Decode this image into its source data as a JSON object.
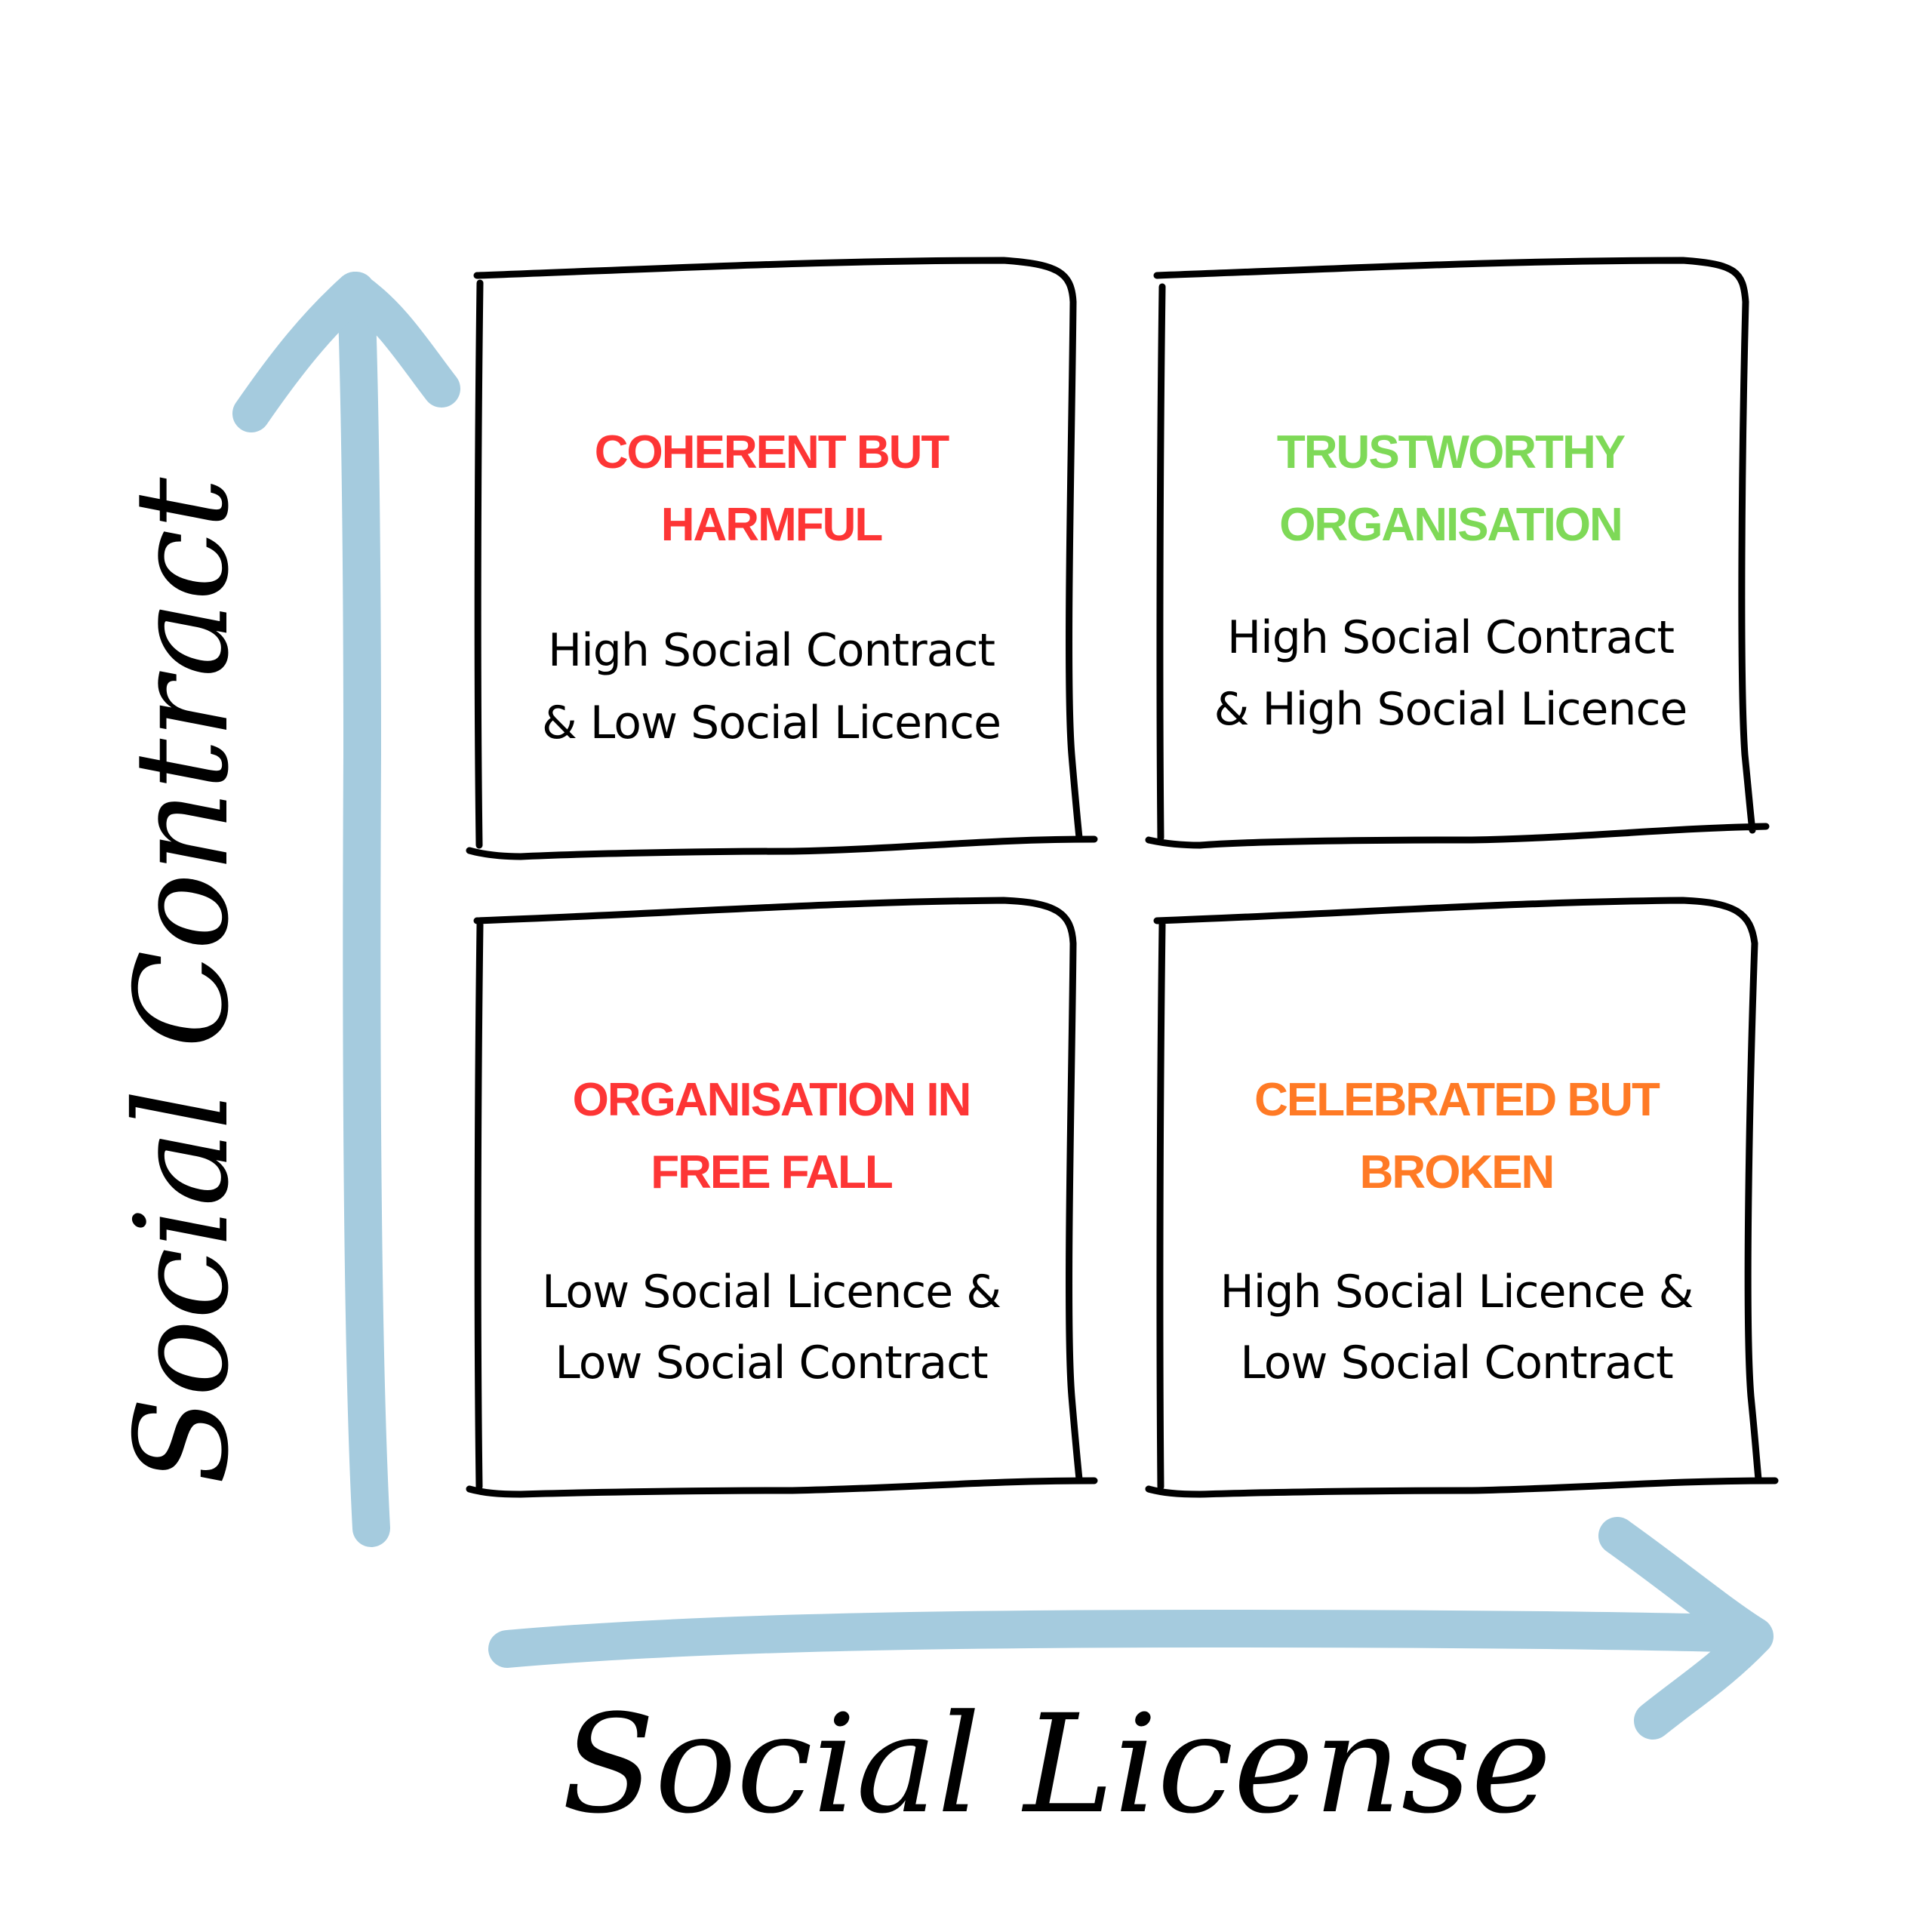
{
  "colors": {
    "arrow": "#a5cbde",
    "harmful": "#fd3535",
    "trustworthy": "#7ed957",
    "broken": "#ff7a25",
    "outline": "#000000"
  },
  "axes": {
    "y_label": "Social Contract",
    "x_label": "Social License"
  },
  "quadrants": [
    {
      "title_line1": "COHERENT BUT",
      "title_line2": "HARMFUL",
      "desc_line1": "High Social Contract",
      "desc_line2": "& Low Social Licence"
    },
    {
      "title_line1": "TRUSTWORTHY",
      "title_line2": "ORGANISATION",
      "desc_line1": "High Social Contract",
      "desc_line2": "& High Social Licence"
    },
    {
      "title_line1": "ORGANISATION IN",
      "title_line2": "FREE FALL",
      "desc_line1": "Low Social Licence &",
      "desc_line2": "Low Social Contract"
    },
    {
      "title_line1": "CELEBRATED BUT",
      "title_line2": "BROKEN",
      "desc_line1": "High Social Licence &",
      "desc_line2": "Low Social Contract"
    }
  ]
}
